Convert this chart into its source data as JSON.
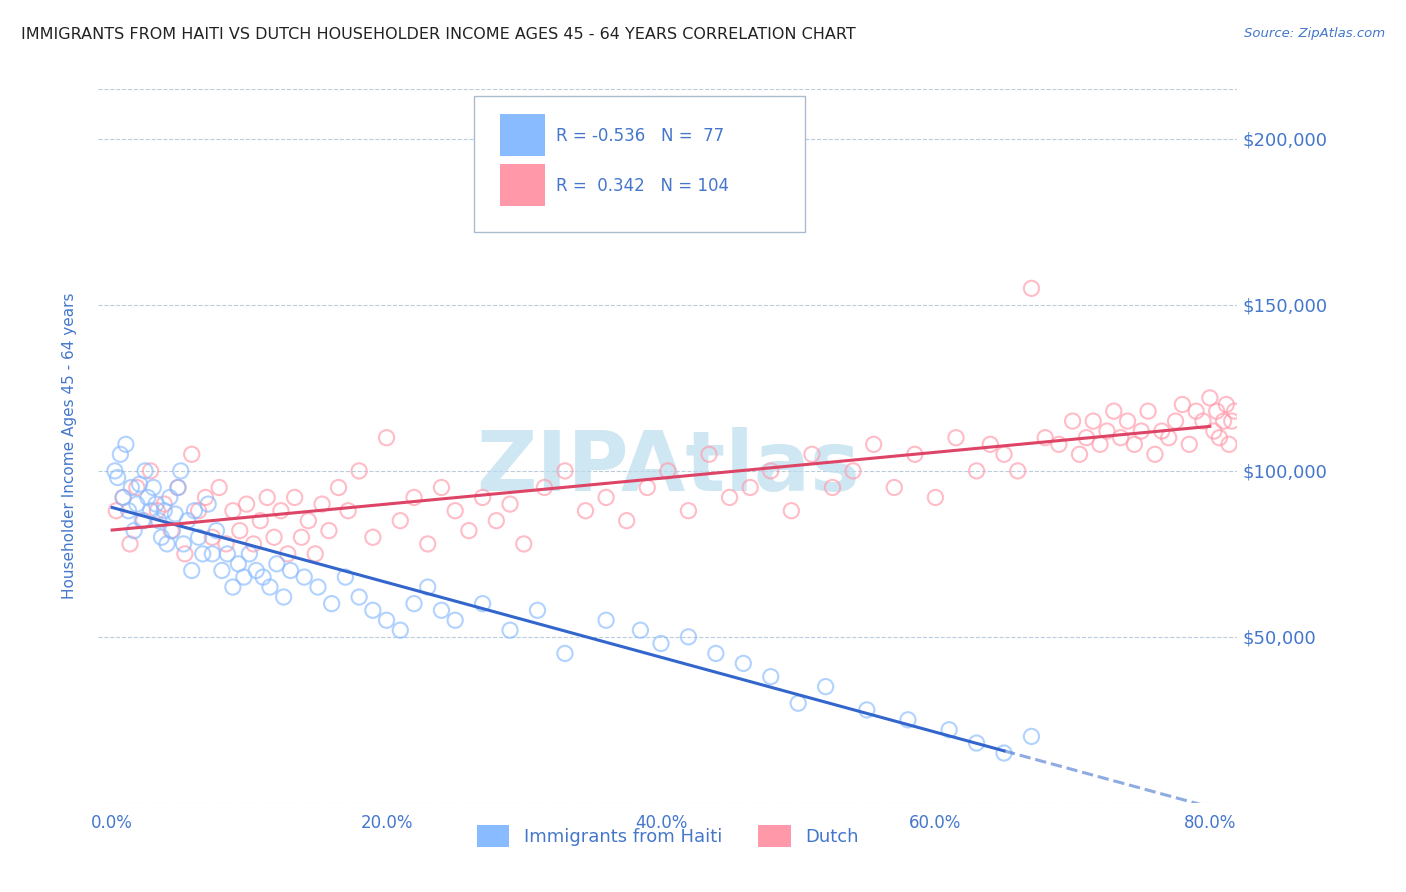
{
  "title": "IMMIGRANTS FROM HAITI VS DUTCH HOUSEHOLDER INCOME AGES 45 - 64 YEARS CORRELATION CHART",
  "source": "Source: ZipAtlas.com",
  "ylabel": "Householder Income Ages 45 - 64 years",
  "xlabel_ticks": [
    "0.0%",
    "20.0%",
    "40.0%",
    "60.0%",
    "80.0%"
  ],
  "xlabel_vals": [
    0.0,
    20.0,
    40.0,
    60.0,
    80.0
  ],
  "ytick_labels": [
    "$50,000",
    "$100,000",
    "$150,000",
    "$200,000"
  ],
  "ytick_vals": [
    50000,
    100000,
    150000,
    200000
  ],
  "ylim": [
    0,
    215000
  ],
  "xlim": [
    -1,
    82
  ],
  "haiti_color": "#88bbff",
  "dutch_color": "#ff99aa",
  "haiti_R": -0.536,
  "haiti_N": 77,
  "dutch_R": 0.342,
  "dutch_N": 104,
  "haiti_line_color": "#3366cc",
  "dutch_line_color": "#dd4466",
  "watermark": "ZIPAtlas",
  "watermark_color": "#bbddee",
  "background_color": "#ffffff",
  "grid_color": "#bbccdd",
  "title_color": "#222222",
  "axis_label_color": "#4477cc",
  "legend_label1": "Immigrants from Haiti",
  "legend_label2": "Dutch",
  "haiti_scatter_x": [
    0.2,
    0.4,
    0.6,
    0.8,
    1.0,
    1.2,
    1.4,
    1.6,
    1.8,
    2.0,
    2.2,
    2.4,
    2.6,
    2.8,
    3.0,
    3.2,
    3.4,
    3.6,
    3.8,
    4.0,
    4.2,
    4.4,
    4.6,
    4.8,
    5.0,
    5.2,
    5.5,
    5.8,
    6.0,
    6.3,
    6.6,
    7.0,
    7.3,
    7.6,
    8.0,
    8.4,
    8.8,
    9.2,
    9.6,
    10.0,
    10.5,
    11.0,
    11.5,
    12.0,
    12.5,
    13.0,
    14.0,
    15.0,
    16.0,
    17.0,
    18.0,
    19.0,
    20.0,
    21.0,
    22.0,
    23.0,
    24.0,
    25.0,
    27.0,
    29.0,
    31.0,
    33.0,
    36.0,
    38.5,
    40.0,
    42.0,
    44.0,
    46.0,
    48.0,
    50.0,
    52.0,
    55.0,
    58.0,
    61.0,
    63.0,
    65.0,
    67.0
  ],
  "haiti_scatter_y": [
    100000,
    98000,
    105000,
    92000,
    108000,
    88000,
    95000,
    82000,
    90000,
    96000,
    85000,
    100000,
    92000,
    88000,
    95000,
    90000,
    85000,
    80000,
    88000,
    78000,
    92000,
    82000,
    87000,
    95000,
    100000,
    78000,
    85000,
    70000,
    88000,
    80000,
    75000,
    90000,
    75000,
    82000,
    70000,
    75000,
    65000,
    72000,
    68000,
    75000,
    70000,
    68000,
    65000,
    72000,
    62000,
    70000,
    68000,
    65000,
    60000,
    68000,
    62000,
    58000,
    55000,
    52000,
    60000,
    65000,
    58000,
    55000,
    60000,
    52000,
    58000,
    45000,
    55000,
    52000,
    48000,
    50000,
    45000,
    42000,
    38000,
    30000,
    35000,
    28000,
    25000,
    22000,
    18000,
    15000,
    20000
  ],
  "dutch_scatter_x": [
    0.3,
    0.8,
    1.3,
    1.8,
    2.3,
    2.8,
    3.3,
    3.8,
    4.3,
    4.8,
    5.3,
    5.8,
    6.3,
    6.8,
    7.3,
    7.8,
    8.3,
    8.8,
    9.3,
    9.8,
    10.3,
    10.8,
    11.3,
    11.8,
    12.3,
    12.8,
    13.3,
    13.8,
    14.3,
    14.8,
    15.3,
    15.8,
    16.5,
    17.2,
    18.0,
    19.0,
    20.0,
    21.0,
    22.0,
    23.0,
    24.0,
    25.0,
    26.0,
    27.0,
    28.0,
    29.0,
    30.0,
    31.5,
    33.0,
    34.5,
    36.0,
    37.5,
    39.0,
    40.5,
    42.0,
    43.5,
    45.0,
    46.5,
    48.0,
    49.5,
    51.0,
    52.5,
    54.0,
    55.5,
    57.0,
    58.5,
    60.0,
    61.5,
    63.0,
    64.0,
    65.0,
    66.0,
    67.0,
    68.0,
    69.0,
    70.0,
    70.5,
    71.0,
    71.5,
    72.0,
    72.5,
    73.0,
    73.5,
    74.0,
    74.5,
    75.0,
    75.5,
    76.0,
    76.5,
    77.0,
    77.5,
    78.0,
    78.5,
    79.0,
    79.5,
    80.0,
    80.3,
    80.5,
    80.7,
    81.0,
    81.2,
    81.4,
    81.6,
    81.8
  ],
  "dutch_scatter_y": [
    88000,
    92000,
    78000,
    95000,
    85000,
    100000,
    88000,
    90000,
    82000,
    95000,
    75000,
    105000,
    88000,
    92000,
    80000,
    95000,
    78000,
    88000,
    82000,
    90000,
    78000,
    85000,
    92000,
    80000,
    88000,
    75000,
    92000,
    80000,
    85000,
    75000,
    90000,
    82000,
    95000,
    88000,
    100000,
    80000,
    110000,
    85000,
    92000,
    78000,
    95000,
    88000,
    82000,
    92000,
    85000,
    90000,
    78000,
    95000,
    100000,
    88000,
    92000,
    85000,
    95000,
    100000,
    88000,
    105000,
    92000,
    95000,
    100000,
    88000,
    105000,
    95000,
    100000,
    108000,
    95000,
    105000,
    92000,
    110000,
    100000,
    108000,
    105000,
    100000,
    155000,
    110000,
    108000,
    115000,
    105000,
    110000,
    115000,
    108000,
    112000,
    118000,
    110000,
    115000,
    108000,
    112000,
    118000,
    105000,
    112000,
    110000,
    115000,
    120000,
    108000,
    118000,
    115000,
    122000,
    112000,
    118000,
    110000,
    115000,
    120000,
    108000,
    115000,
    118000
  ]
}
